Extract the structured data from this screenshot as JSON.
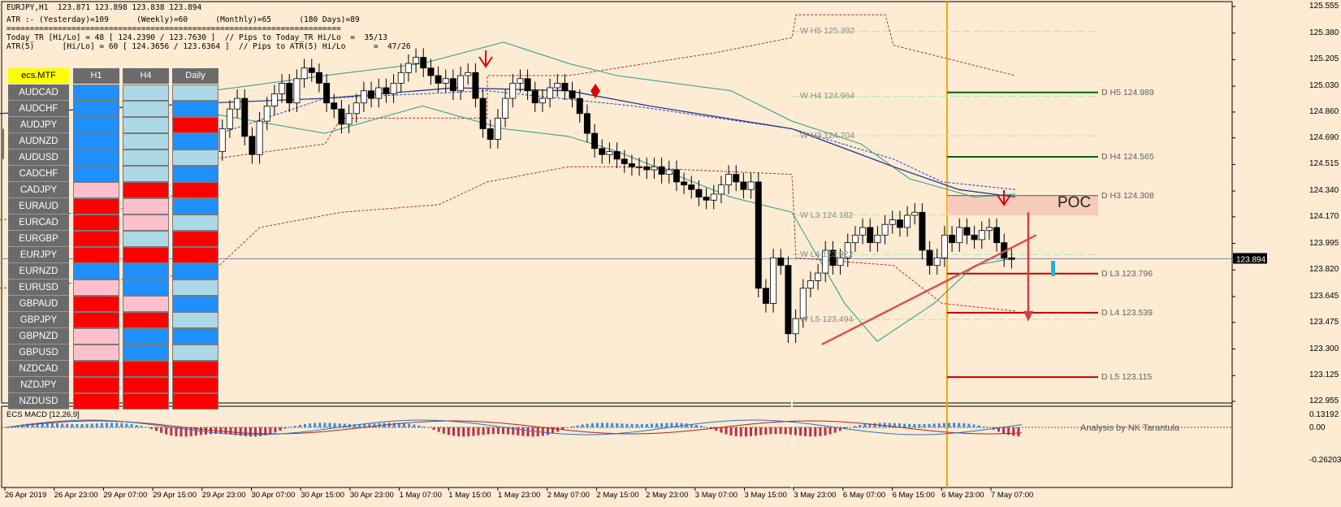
{
  "header": {
    "title": "EURJPY,H1  123.871 123.898 123.838 123.894",
    "atr": "ATR :- (Yesterday)=109      (Weekly)=60      (Monthly)=65      (180 Days)=89",
    "separator": "========================================================================",
    "today_tr": "Today_TR [Hi/Lo] = 48 [ 124.2390 / 123.7630 ]  // Pips to Today_TR Hi/Lo  =  35/13",
    "atr5": "ATR(5)      [Hi/Lo] = 60 [ 124.3656 / 123.6364 ]  // Pips to ATR(5) Hi/Lo      =  47/26"
  },
  "mtf": {
    "title": "ecs.MTF",
    "columns": [
      "H1",
      "H4",
      "Daily"
    ],
    "colors": {
      "strong_up": "#1e90ff",
      "weak_up": "#add8e6",
      "strong_down": "#ff0000",
      "weak_down": "#ffc0cb"
    },
    "rows": [
      {
        "symbol": "AUDCAD",
        "cells": [
          "strong_up",
          "weak_up",
          "weak_up"
        ]
      },
      {
        "symbol": "AUDCHF",
        "cells": [
          "strong_up",
          "weak_up",
          "strong_up"
        ]
      },
      {
        "symbol": "AUDJPY",
        "cells": [
          "strong_up",
          "weak_up",
          "strong_down"
        ]
      },
      {
        "symbol": "AUDNZD",
        "cells": [
          "strong_up",
          "weak_up",
          "strong_up"
        ]
      },
      {
        "symbol": "AUDUSD",
        "cells": [
          "strong_up",
          "weak_up",
          "weak_up"
        ]
      },
      {
        "symbol": "CADCHF",
        "cells": [
          "strong_up",
          "weak_up",
          "strong_up"
        ]
      },
      {
        "symbol": "CADJPY",
        "cells": [
          "weak_down",
          "strong_down",
          "strong_down"
        ]
      },
      {
        "symbol": "EURAUD",
        "cells": [
          "strong_down",
          "weak_down",
          "strong_up"
        ]
      },
      {
        "symbol": "EURCAD",
        "cells": [
          "strong_down",
          "weak_down",
          "weak_up"
        ]
      },
      {
        "symbol": "EURGBP",
        "cells": [
          "strong_down",
          "weak_up",
          "strong_down"
        ]
      },
      {
        "symbol": "EURJPY",
        "cells": [
          "strong_down",
          "strong_down",
          "strong_down"
        ]
      },
      {
        "symbol": "EURNZD",
        "cells": [
          "strong_up",
          "strong_up",
          "strong_up"
        ]
      },
      {
        "symbol": "EURUSD",
        "cells": [
          "weak_down",
          "strong_up",
          "weak_up"
        ]
      },
      {
        "symbol": "GBPAUD",
        "cells": [
          "strong_down",
          "weak_down",
          "strong_up"
        ]
      },
      {
        "symbol": "GBPJPY",
        "cells": [
          "strong_down",
          "strong_down",
          "weak_up"
        ]
      },
      {
        "symbol": "GBPNZD",
        "cells": [
          "weak_down",
          "strong_up",
          "strong_up"
        ]
      },
      {
        "symbol": "GBPUSD",
        "cells": [
          "weak_down",
          "strong_up",
          "weak_up"
        ]
      },
      {
        "symbol": "NZDCAD",
        "cells": [
          "strong_down",
          "strong_down",
          "strong_down"
        ]
      },
      {
        "symbol": "NZDJPY",
        "cells": [
          "strong_down",
          "strong_down",
          "strong_down"
        ]
      },
      {
        "symbol": "NZDUSD",
        "cells": [
          "strong_down",
          "strong_down",
          "strong_down"
        ]
      }
    ]
  },
  "levels": {
    "weekly": [
      {
        "label": "W  H5 125.392",
        "value": 125.392
      },
      {
        "label": "W  H4 124.964",
        "value": 124.964
      },
      {
        "label": "W  H3 124.704",
        "value": 124.704
      },
      {
        "label": "W  L3 124.182",
        "value": 124.182
      },
      {
        "label": "W  L4 123.922",
        "value": 123.922
      },
      {
        "label": "W  L5 123.494",
        "value": 123.494
      }
    ],
    "daily": [
      {
        "label": "D  H5 124.989",
        "value": 124.989
      },
      {
        "label": "D  H4 124.565",
        "value": 124.565
      },
      {
        "label": "D  H3 124.308",
        "value": 124.308
      },
      {
        "label": "D  L3 123.796",
        "value": 123.796
      },
      {
        "label": "D  L4 123.539",
        "value": 123.539
      },
      {
        "label": "D  L5 123.115",
        "value": 123.115
      }
    ]
  },
  "poc_label": "POC",
  "current_price": "123.894",
  "macd": {
    "label": "ECS MACD [12,26,9]",
    "ticks": [
      "0.13192",
      "0.00",
      "-0.26203"
    ]
  },
  "analysis_label": "Analysis by NK Tarantula",
  "chart_data": {
    "type": "candlestick",
    "symbol": "EURJPY",
    "timeframe": "H1",
    "ylim": [
      122.955,
      125.555
    ],
    "y_ticks": [
      "125.555",
      "125.380",
      "125.205",
      "125.030",
      "124.860",
      "124.690",
      "124.515",
      "124.340",
      "124.170",
      "123.995",
      "123.820",
      "123.645",
      "123.475",
      "123.300",
      "123.125",
      "122.955"
    ],
    "x_ticks": [
      "26 Apr 2019",
      "26 Apr 23:00",
      "29 Apr 07:00",
      "29 Apr 15:00",
      "29 Apr 23:00",
      "30 Apr 07:00",
      "30 Apr 15:00",
      "30 Apr 23:00",
      "1 May 07:00",
      "1 May 15:00",
      "1 May 23:00",
      "2 May 07:00",
      "2 May 15:00",
      "2 May 23:00",
      "3 May 07:00",
      "3 May 15:00",
      "3 May 23:00",
      "6 May 07:00",
      "6 May 15:00",
      "6 May 23:00",
      "7 May 07:00"
    ],
    "series": [
      {
        "name": "EURJPY",
        "close_path": [
          124.6,
          124.75,
          124.88,
          124.95,
          124.7,
          124.58,
          124.8,
          124.9,
          124.98,
          125.05,
          124.92,
          125.08,
          125.15,
          125.12,
          125.05,
          124.92,
          124.88,
          124.78,
          124.85,
          124.92,
          125.0,
          124.95,
          125.02,
          124.98,
          125.05,
          125.12,
          125.18,
          125.22,
          125.15,
          125.1,
          125.05,
          125.08,
          125.0,
          125.1,
          125.12,
          124.95,
          124.75,
          124.68,
          124.82,
          124.95,
          125.05,
          125.08,
          125.0,
          124.92,
          124.95,
          125.02,
          125.05,
          125.0,
          124.95,
          124.85,
          124.72,
          124.62,
          124.58,
          124.6,
          124.55,
          124.52,
          124.5,
          124.5,
          124.48,
          124.5,
          124.45,
          124.48,
          124.4,
          124.38,
          124.35,
          124.3,
          124.28,
          124.32,
          124.38,
          124.45,
          124.4,
          124.35,
          124.4,
          123.7,
          123.6,
          123.9,
          123.85,
          123.4,
          123.5,
          123.7,
          123.75,
          123.8,
          123.95,
          123.85,
          123.9,
          124.0,
          124.05,
          124.1,
          124.0,
          124.05,
          124.12,
          124.15,
          124.1,
          124.18,
          124.2,
          123.95,
          123.85,
          123.9,
          124.05,
          124.0,
          124.1,
          124.05,
          124.02,
          124.08,
          124.1,
          124.0,
          123.9,
          123.89
        ]
      }
    ],
    "macd": {
      "ylim": [
        -0.26203,
        0.13192
      ]
    }
  }
}
